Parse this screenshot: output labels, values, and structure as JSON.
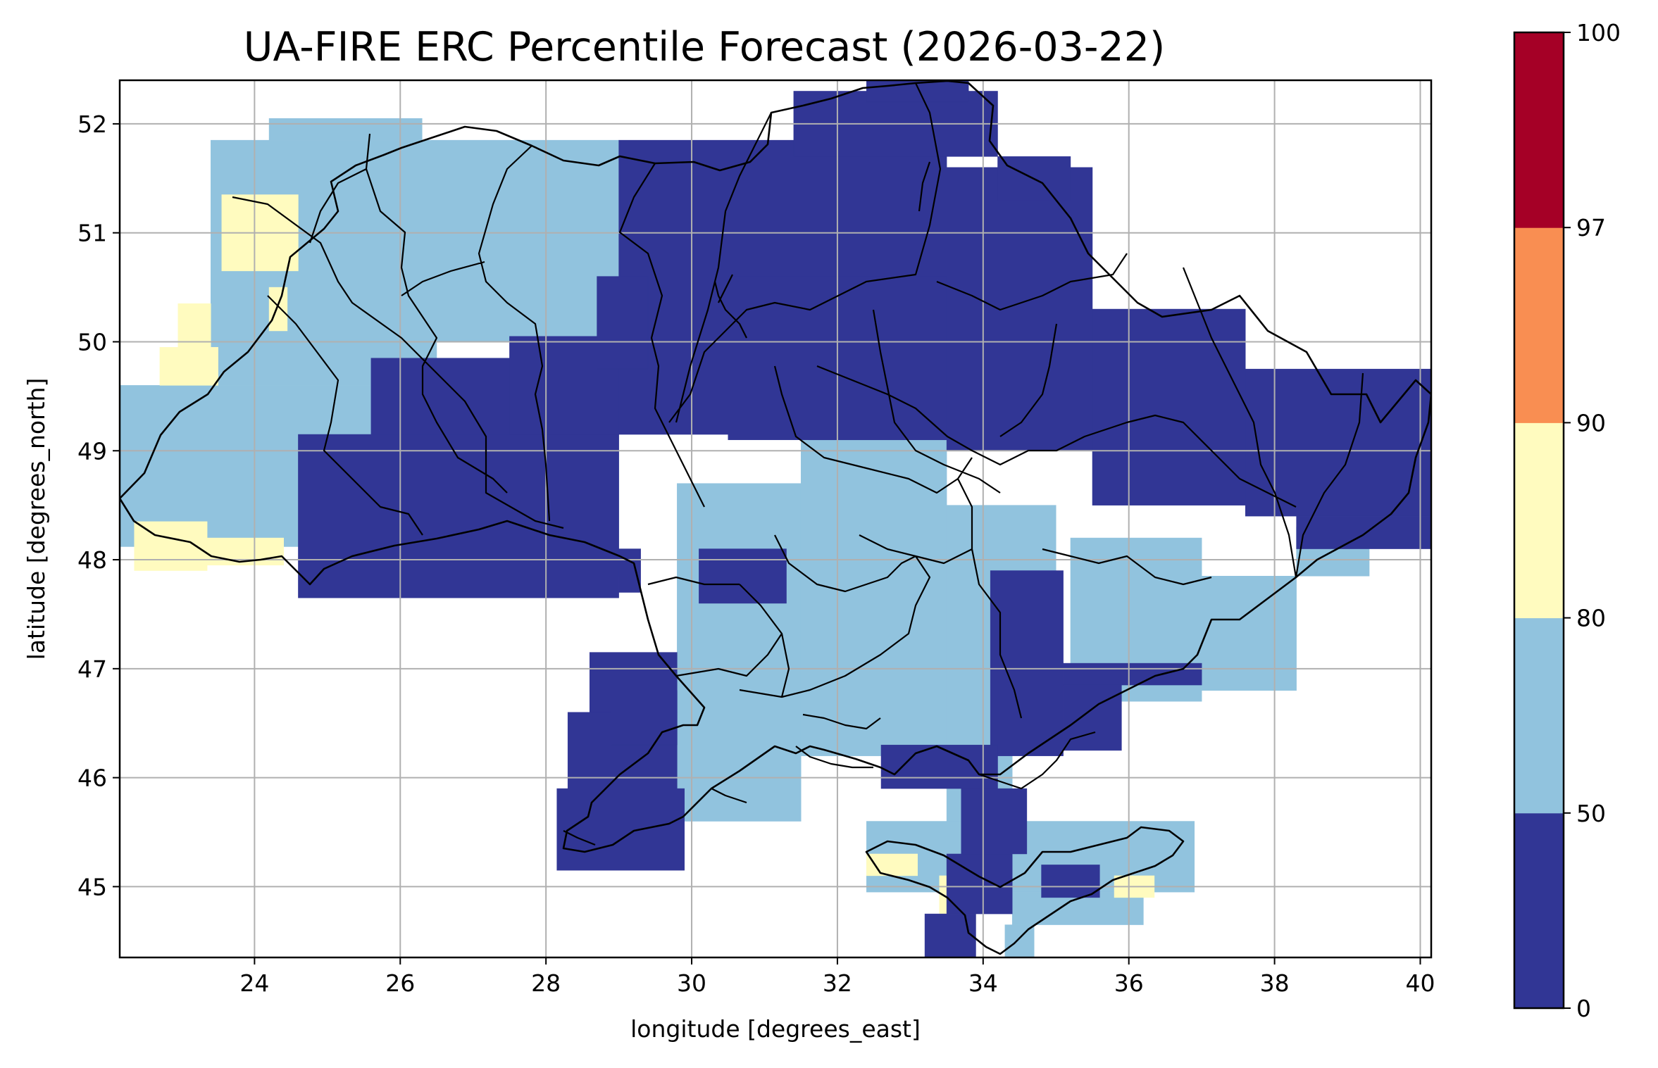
{
  "chart_data": {
    "type": "heatmap",
    "title": "UA-FIRE ERC Percentile Forecast (2026-03-22)",
    "xlabel": "longitude [degrees_east]",
    "ylabel": "latitude [degrees_north]",
    "xlim": [
      22.15,
      40.15
    ],
    "ylim": [
      44.35,
      52.4
    ],
    "xticks": [
      "24",
      "26",
      "28",
      "30",
      "32",
      "34",
      "36",
      "38",
      "40"
    ],
    "yticks": [
      "45",
      "46",
      "47",
      "48",
      "49",
      "50",
      "51",
      "52"
    ],
    "grid": true,
    "colorbar": {
      "boundaries": [
        0,
        50,
        80,
        90,
        97,
        100
      ],
      "tick_labels": [
        "0",
        "50",
        "80",
        "90",
        "97",
        "100"
      ],
      "colors": [
        "#313695",
        "#91c3de",
        "#fffbbf",
        "#f98e52",
        "#a50026"
      ]
    },
    "cell_size_deg": 0.25,
    "classes_present": [
      "0-50",
      "50-80",
      "80-90"
    ],
    "regions": [
      {
        "class": 1,
        "rects": [
          [
            22.15,
            48.12,
            29.0,
            49.6
          ],
          [
            23.4,
            49.6,
            26.5,
            50.0
          ],
          [
            23.4,
            50.0,
            29.0,
            51.85
          ],
          [
            24.2,
            51.85,
            26.3,
            52.05
          ],
          [
            25.5,
            47.85,
            29.0,
            48.12
          ],
          [
            29.8,
            45.6,
            31.5,
            48.7
          ],
          [
            31.5,
            46.2,
            33.5,
            49.1
          ],
          [
            33.5,
            45.2,
            34.4,
            46.3
          ],
          [
            33.5,
            46.3,
            35.0,
            48.5
          ],
          [
            35.2,
            46.7,
            37.0,
            48.2
          ],
          [
            37.0,
            46.8,
            38.3,
            47.85
          ],
          [
            38.3,
            47.85,
            39.3,
            48.3
          ],
          [
            32.4,
            44.95,
            36.9,
            45.6
          ],
          [
            34.4,
            44.65,
            36.2,
            44.95
          ],
          [
            34.3,
            44.35,
            34.7,
            44.65
          ]
        ]
      },
      {
        "class": 2,
        "rects": [
          [
            22.35,
            47.9,
            23.35,
            48.35
          ],
          [
            23.35,
            47.95,
            24.4,
            48.2
          ],
          [
            22.7,
            49.6,
            23.5,
            49.95
          ],
          [
            22.95,
            49.95,
            23.4,
            50.35
          ],
          [
            23.55,
            50.65,
            24.6,
            51.35
          ],
          [
            24.2,
            50.1,
            24.45,
            50.5
          ],
          [
            32.4,
            45.1,
            33.1,
            45.3
          ],
          [
            33.4,
            44.65,
            33.9,
            45.1
          ],
          [
            35.8,
            44.9,
            36.35,
            45.1
          ]
        ]
      },
      {
        "class": 0,
        "rects": [
          [
            24.6,
            47.65,
            29.0,
            49.15
          ],
          [
            25.6,
            49.15,
            29.0,
            49.85
          ],
          [
            27.5,
            49.15,
            29.0,
            50.05
          ],
          [
            29.0,
            49.15,
            31.6,
            51.85
          ],
          [
            28.7,
            49.75,
            29.4,
            50.6
          ],
          [
            31.6,
            49.1,
            33.5,
            51.85
          ],
          [
            30.5,
            49.1,
            33.5,
            50.6
          ],
          [
            33.5,
            49.0,
            35.5,
            51.6
          ],
          [
            35.5,
            48.5,
            37.6,
            50.3
          ],
          [
            37.6,
            48.4,
            40.15,
            49.75
          ],
          [
            38.3,
            48.1,
            40.15,
            48.4
          ],
          [
            31.4,
            51.7,
            34.2,
            52.3
          ],
          [
            32.4,
            52.2,
            33.8,
            52.4
          ],
          [
            34.2,
            51.3,
            35.2,
            51.7
          ],
          [
            30.1,
            47.6,
            31.3,
            48.1
          ],
          [
            34.1,
            46.2,
            35.1,
            47.9
          ],
          [
            35.1,
            46.85,
            37.0,
            47.05
          ],
          [
            29.0,
            47.7,
            29.3,
            48.1
          ],
          [
            28.6,
            46.6,
            29.8,
            47.15
          ],
          [
            28.3,
            45.9,
            29.8,
            46.6
          ],
          [
            28.15,
            45.15,
            29.9,
            45.9
          ],
          [
            28.9,
            46.3,
            29.8,
            46.8
          ],
          [
            32.6,
            45.9,
            34.2,
            46.3
          ],
          [
            33.7,
            45.3,
            34.6,
            45.9
          ],
          [
            33.5,
            44.75,
            34.4,
            45.3
          ],
          [
            33.2,
            44.35,
            33.9,
            44.75
          ],
          [
            34.8,
            44.9,
            35.6,
            45.2
          ],
          [
            35.1,
            46.25,
            35.9,
            46.85
          ]
        ]
      }
    ],
    "map_outline": "Ukraine national and oblast boundaries (black lines)"
  }
}
